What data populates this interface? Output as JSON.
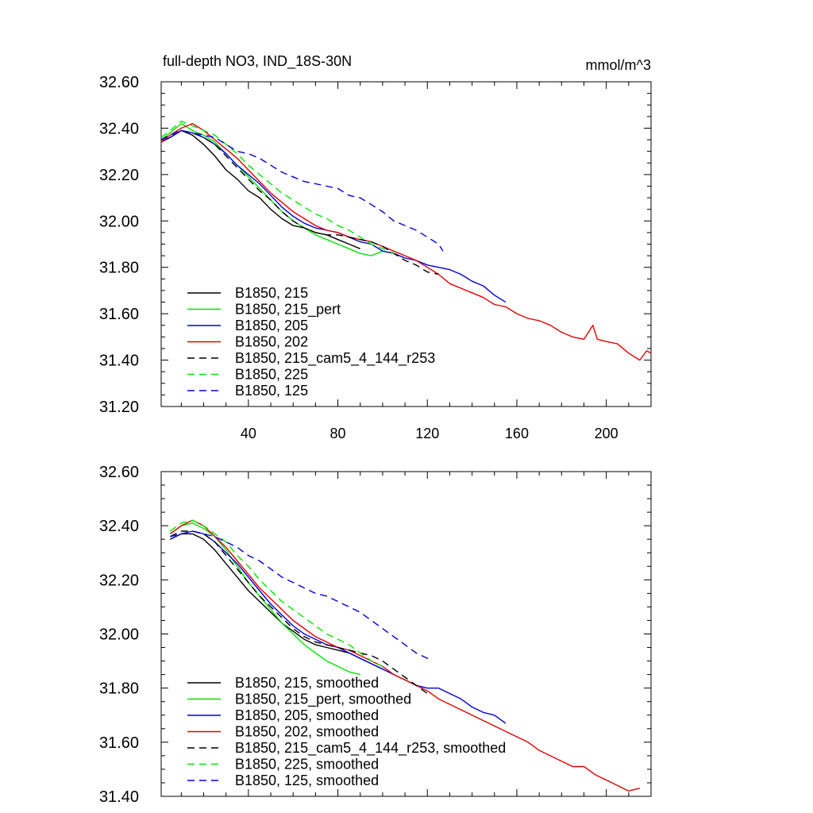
{
  "figure": {
    "title": "full-depth NO3, IND_18S-30N",
    "units": "mmol/m^3"
  },
  "colors": {
    "black": "#000000",
    "green": "#00e600",
    "blue": "#0000dd",
    "red": "#e60000"
  },
  "chart_data": [
    {
      "type": "line",
      "title": "full-depth NO3, IND_18S-30N",
      "units_label": "mmol/m^3",
      "xlim": [
        1,
        220
      ],
      "ylim": [
        31.2,
        32.6
      ],
      "xticks": [
        40,
        80,
        120,
        160,
        200
      ],
      "xtick_labels": [
        "40",
        "80",
        "120",
        "160",
        "200"
      ],
      "yticks": [
        31.2,
        31.4,
        31.6,
        31.8,
        32.0,
        32.2,
        32.4,
        32.6
      ],
      "ytick_labels": [
        "31.20",
        "31.40",
        "31.60",
        "31.80",
        "32.00",
        "32.20",
        "32.40",
        "32.60"
      ],
      "legend_position": "bottom-left",
      "series": [
        {
          "name": "B1850, 215",
          "color": "#000000",
          "dash": "solid",
          "x": [
            1,
            5,
            10,
            15,
            20,
            25,
            30,
            35,
            40,
            45,
            50,
            55,
            60,
            65,
            70,
            75,
            80,
            85,
            90
          ],
          "y": [
            32.34,
            32.36,
            32.39,
            32.37,
            32.33,
            32.28,
            32.22,
            32.18,
            32.13,
            32.1,
            32.05,
            32.01,
            31.98,
            31.97,
            31.95,
            31.94,
            31.92,
            31.9,
            31.88
          ]
        },
        {
          "name": "B1850, 215_pert",
          "color": "#00e600",
          "dash": "solid",
          "x": [
            1,
            5,
            10,
            15,
            20,
            25,
            30,
            35,
            40,
            45,
            50,
            55,
            60,
            65,
            70,
            75,
            80,
            85,
            90,
            95,
            100,
            105
          ],
          "y": [
            32.35,
            32.38,
            32.42,
            32.39,
            32.37,
            32.34,
            32.29,
            32.24,
            32.19,
            32.14,
            32.09,
            32.04,
            32.0,
            31.97,
            31.94,
            31.92,
            31.9,
            31.88,
            31.86,
            31.85,
            31.87,
            31.86
          ]
        },
        {
          "name": "B1850, 205",
          "color": "#0000dd",
          "dash": "solid",
          "x": [
            1,
            5,
            10,
            15,
            20,
            25,
            30,
            35,
            40,
            45,
            50,
            55,
            60,
            65,
            70,
            75,
            80,
            85,
            90,
            95,
            100,
            105,
            110,
            115,
            120,
            125,
            130,
            135,
            140,
            145,
            150,
            155
          ],
          "y": [
            32.34,
            32.36,
            32.39,
            32.38,
            32.36,
            32.33,
            32.29,
            32.24,
            32.2,
            32.16,
            32.11,
            32.06,
            32.02,
            31.99,
            31.97,
            31.96,
            31.95,
            31.93,
            31.91,
            31.9,
            31.87,
            31.86,
            31.84,
            31.83,
            31.81,
            31.8,
            31.79,
            31.77,
            31.74,
            31.72,
            31.68,
            31.65
          ]
        },
        {
          "name": "B1850, 202",
          "color": "#e60000",
          "dash": "solid",
          "x": [
            1,
            5,
            10,
            15,
            20,
            25,
            30,
            35,
            40,
            45,
            50,
            55,
            60,
            65,
            70,
            75,
            80,
            85,
            90,
            95,
            100,
            105,
            110,
            115,
            120,
            125,
            130,
            135,
            140,
            145,
            150,
            155,
            160,
            165,
            170,
            175,
            180,
            185,
            190,
            194,
            196,
            200,
            205,
            210,
            215,
            218,
            220
          ],
          "y": [
            32.34,
            32.37,
            32.4,
            32.42,
            32.39,
            32.35,
            32.31,
            32.27,
            32.22,
            32.17,
            32.12,
            32.08,
            32.04,
            32.01,
            31.98,
            31.96,
            31.95,
            31.93,
            31.92,
            31.91,
            31.89,
            31.87,
            31.85,
            31.83,
            31.8,
            31.77,
            31.73,
            31.71,
            31.69,
            31.67,
            31.64,
            31.63,
            31.6,
            31.58,
            31.57,
            31.55,
            31.52,
            31.5,
            31.49,
            31.55,
            31.49,
            31.48,
            31.47,
            31.43,
            31.4,
            31.44,
            31.43
          ]
        },
        {
          "name": "B1850, 215_cam5_4_144_r253",
          "color": "#000000",
          "dash": "dashed",
          "x": [
            1,
            5,
            10,
            15,
            20,
            25,
            30,
            35,
            40,
            45,
            50,
            55,
            60,
            65,
            70,
            75,
            80,
            85,
            90,
            95,
            100,
            105,
            110,
            115,
            120,
            125
          ],
          "y": [
            32.35,
            32.37,
            32.39,
            32.38,
            32.36,
            32.33,
            32.28,
            32.23,
            32.18,
            32.13,
            32.09,
            32.04,
            32.0,
            31.97,
            31.95,
            31.94,
            31.94,
            31.93,
            31.92,
            31.91,
            31.89,
            31.86,
            31.83,
            31.81,
            31.78,
            31.77
          ]
        },
        {
          "name": "B1850, 225",
          "color": "#00e600",
          "dash": "dashed",
          "x": [
            1,
            5,
            10,
            15,
            20,
            25,
            30,
            35,
            40,
            45,
            50,
            55,
            60,
            65,
            70,
            75,
            80,
            85,
            90,
            95,
            100,
            105
          ],
          "y": [
            32.36,
            32.39,
            32.43,
            32.41,
            32.39,
            32.37,
            32.33,
            32.29,
            32.24,
            32.2,
            32.16,
            32.12,
            32.09,
            32.06,
            32.03,
            32.01,
            31.98,
            31.96,
            31.93,
            31.9,
            31.88,
            31.86
          ]
        },
        {
          "name": "B1850, 125",
          "color": "#0000dd",
          "dash": "dashed",
          "x": [
            1,
            5,
            10,
            15,
            20,
            25,
            30,
            35,
            40,
            45,
            50,
            55,
            60,
            65,
            70,
            75,
            80,
            85,
            90,
            95,
            100,
            105,
            110,
            115,
            120,
            125,
            127
          ],
          "y": [
            32.35,
            32.37,
            32.39,
            32.38,
            32.37,
            32.36,
            32.33,
            32.3,
            32.29,
            32.27,
            32.24,
            32.21,
            32.19,
            32.17,
            32.16,
            32.15,
            32.14,
            32.11,
            32.1,
            32.07,
            32.04,
            32.0,
            31.98,
            31.96,
            31.93,
            31.9,
            31.87
          ]
        }
      ]
    },
    {
      "type": "line",
      "xlim": [
        1,
        220
      ],
      "ylim": [
        31.4,
        32.6
      ],
      "yticks": [
        31.4,
        31.6,
        31.8,
        32.0,
        32.2,
        32.4,
        32.6
      ],
      "ytick_labels": [
        "31.40",
        "31.60",
        "31.80",
        "32.00",
        "32.20",
        "32.40",
        "32.60"
      ],
      "legend_position": "bottom-left",
      "series": [
        {
          "name": "B1850, 215, smoothed",
          "color": "#000000",
          "dash": "solid",
          "x": [
            5,
            10,
            15,
            20,
            25,
            30,
            35,
            40,
            45,
            50,
            55,
            60,
            65,
            70,
            75,
            80,
            85,
            90,
            95,
            100
          ],
          "y": [
            32.35,
            32.37,
            32.37,
            32.35,
            32.31,
            32.26,
            32.21,
            32.16,
            32.12,
            32.08,
            32.04,
            32.01,
            31.98,
            31.96,
            31.95,
            31.94,
            31.93,
            31.91,
            31.89,
            31.87
          ]
        },
        {
          "name": "B1850, 215_pert, smoothed",
          "color": "#00e600",
          "dash": "solid",
          "x": [
            5,
            10,
            15,
            20,
            25,
            30,
            35,
            40,
            45,
            50,
            55,
            60,
            65,
            70,
            75,
            80,
            85,
            90
          ],
          "y": [
            32.37,
            32.4,
            32.41,
            32.39,
            32.36,
            32.31,
            32.25,
            32.19,
            32.14,
            32.09,
            32.04,
            32.0,
            31.96,
            31.93,
            31.9,
            31.88,
            31.86,
            31.85
          ]
        },
        {
          "name": "B1850, 205, smoothed",
          "color": "#0000dd",
          "dash": "solid",
          "x": [
            5,
            10,
            15,
            20,
            25,
            30,
            35,
            40,
            45,
            50,
            55,
            60,
            65,
            70,
            75,
            80,
            85,
            90,
            95,
            100,
            105,
            110,
            115,
            120,
            125,
            130,
            135,
            140,
            145,
            150,
            155
          ],
          "y": [
            32.35,
            32.37,
            32.38,
            32.37,
            32.34,
            32.3,
            32.26,
            32.21,
            32.16,
            32.11,
            32.07,
            32.03,
            32.0,
            31.98,
            31.96,
            31.95,
            31.93,
            31.91,
            31.89,
            31.87,
            31.85,
            31.83,
            31.81,
            31.8,
            31.8,
            31.78,
            31.76,
            31.73,
            31.71,
            31.7,
            31.67
          ]
        },
        {
          "name": "B1850, 202, smoothed",
          "color": "#e60000",
          "dash": "solid",
          "x": [
            5,
            10,
            15,
            20,
            25,
            30,
            35,
            40,
            45,
            50,
            55,
            60,
            65,
            70,
            75,
            80,
            85,
            90,
            95,
            100,
            105,
            110,
            115,
            120,
            125,
            130,
            135,
            140,
            145,
            150,
            155,
            160,
            165,
            170,
            175,
            180,
            185,
            190,
            195,
            200,
            205,
            210,
            215
          ],
          "y": [
            32.37,
            32.4,
            32.42,
            32.4,
            32.36,
            32.32,
            32.27,
            32.22,
            32.17,
            32.13,
            32.09,
            32.05,
            32.02,
            31.99,
            31.97,
            31.95,
            31.94,
            31.92,
            31.9,
            31.88,
            31.85,
            31.83,
            31.81,
            31.79,
            31.76,
            31.74,
            31.72,
            31.7,
            31.68,
            31.66,
            31.64,
            31.62,
            31.6,
            31.57,
            31.55,
            31.53,
            31.51,
            31.51,
            31.48,
            31.46,
            31.44,
            31.42,
            31.43
          ]
        },
        {
          "name": "B1850, 215_cam5_4_144_r253, smoothed",
          "color": "#000000",
          "dash": "dashed",
          "x": [
            5,
            10,
            15,
            20,
            25,
            30,
            35,
            40,
            45,
            50,
            55,
            60,
            65,
            70,
            75,
            80,
            85,
            90,
            95,
            100,
            105,
            110,
            115,
            120
          ],
          "y": [
            32.36,
            32.38,
            32.38,
            32.37,
            32.34,
            32.29,
            32.24,
            32.19,
            32.14,
            32.1,
            32.06,
            32.02,
            31.99,
            31.97,
            31.96,
            31.95,
            31.94,
            31.93,
            31.92,
            31.9,
            31.87,
            31.84,
            31.81,
            31.78
          ]
        },
        {
          "name": "B1850, 225, smoothed",
          "color": "#00e600",
          "dash": "dashed",
          "x": [
            5,
            10,
            15,
            20,
            25,
            30,
            35,
            40,
            45,
            50,
            55,
            60,
            65,
            70,
            75,
            80,
            85,
            90,
            95,
            100
          ],
          "y": [
            32.38,
            32.41,
            32.42,
            32.4,
            32.37,
            32.34,
            32.29,
            32.25,
            32.2,
            32.16,
            32.12,
            32.09,
            32.06,
            32.03,
            32.0,
            31.98,
            31.96,
            31.93,
            31.9,
            31.88
          ]
        },
        {
          "name": "B1850, 125, smoothed",
          "color": "#0000dd",
          "dash": "dashed",
          "x": [
            5,
            10,
            15,
            20,
            25,
            30,
            35,
            40,
            45,
            50,
            55,
            60,
            65,
            70,
            75,
            80,
            85,
            90,
            95,
            100,
            105,
            110,
            115,
            120,
            122
          ],
          "y": [
            32.36,
            32.37,
            32.38,
            32.37,
            32.36,
            32.34,
            32.32,
            32.29,
            32.27,
            32.24,
            32.21,
            32.19,
            32.17,
            32.15,
            32.14,
            32.12,
            32.1,
            32.08,
            32.05,
            32.02,
            31.99,
            31.96,
            31.93,
            31.91,
            31.9
          ]
        }
      ]
    }
  ]
}
